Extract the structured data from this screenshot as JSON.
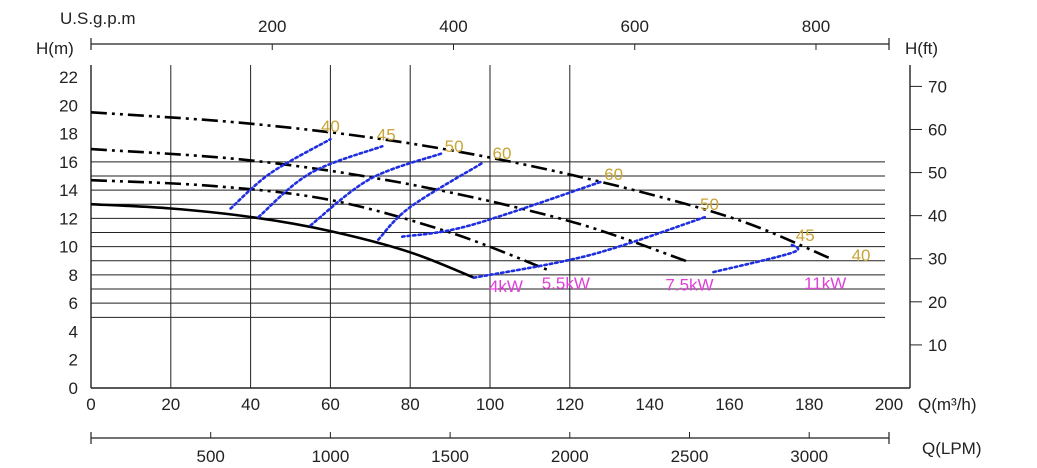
{
  "colors": {
    "axis": "#222222",
    "grid": "#222222",
    "pump_curve": "#000000",
    "efficiency": "#1f2ee0",
    "efficiency_label": "#c8a536",
    "power_label": "#e040d8"
  },
  "chart_data": {
    "type": "line",
    "xlabel": "Q(m³/h)",
    "ylabel": "H(m)",
    "xlim": [
      0,
      200
    ],
    "ylim": [
      0,
      22
    ],
    "x_ticks": [
      "0",
      "20",
      "40",
      "60",
      "80",
      "100",
      "120",
      "140",
      "160",
      "180",
      "200"
    ],
    "y_ticks": [
      "0",
      "2",
      "4",
      "6",
      "8",
      "10",
      "12",
      "14",
      "16",
      "18",
      "20",
      "22"
    ],
    "secondary_axes": {
      "top": {
        "label": "U.S.g.p.m",
        "ticks": [
          "200",
          "400",
          "600",
          "800"
        ]
      },
      "right": {
        "label": "H(ft)",
        "ticks": [
          "10",
          "20",
          "30",
          "40",
          "50",
          "60",
          "70"
        ]
      },
      "bottom": {
        "label": "Q(LPM)",
        "ticks": [
          "500",
          "1000",
          "1500",
          "2000",
          "2500",
          "3000"
        ]
      }
    },
    "grid": {
      "vertical_x": [
        20,
        40,
        60,
        80,
        100,
        120
      ],
      "horizontal_y": [
        5,
        6,
        7,
        8,
        9,
        10,
        11,
        12,
        13,
        14,
        15,
        16
      ]
    },
    "series": [
      {
        "name": "4kW",
        "style": "solid",
        "x": [
          0,
          20,
          40,
          60,
          80,
          96
        ],
        "y": [
          13,
          12.7,
          12.1,
          11.1,
          9.6,
          7.8
        ]
      },
      {
        "name": "5.5kW",
        "style": "dash-dot",
        "x": [
          0,
          30,
          60,
          90,
          115
        ],
        "y": [
          14.7,
          14.3,
          13.3,
          11,
          8.3
        ]
      },
      {
        "name": "7.5kW",
        "style": "dash-dot",
        "x": [
          0,
          40,
          80,
          120,
          150
        ],
        "y": [
          16.9,
          16.1,
          14.4,
          11.8,
          8.9
        ]
      },
      {
        "name": "11kW",
        "style": "dash-dot",
        "x": [
          0,
          40,
          80,
          120,
          160,
          185
        ],
        "y": [
          19.5,
          18.7,
          17.3,
          15.1,
          12.1,
          9.2
        ]
      }
    ],
    "efficiency_curves": [
      {
        "label": "40",
        "x": [
          35,
          45,
          60
        ],
        "y": [
          12.7,
          15.2,
          17.6
        ]
      },
      {
        "label": "45",
        "x": [
          42,
          55,
          73
        ],
        "y": [
          12.1,
          15.2,
          17.1
        ]
      },
      {
        "label": "50",
        "x": [
          55,
          70,
          88
        ],
        "y": [
          11.5,
          14.8,
          16.6
        ]
      },
      {
        "label": "60",
        "x": [
          72,
          80,
          98
        ],
        "y": [
          10.5,
          12.8,
          15.9
        ]
      },
      {
        "label": "60",
        "x": [
          78,
          95,
          128
        ],
        "y": [
          10.7,
          11.5,
          14.6
        ]
      },
      {
        "label": "50",
        "x": [
          96,
          125,
          154
        ],
        "y": [
          7.8,
          9.4,
          12.1
        ]
      },
      {
        "label": "45",
        "x": [
          156,
          176,
          175
        ],
        "y": [
          8.2,
          9.6,
          10.2
        ]
      }
    ],
    "efficiency_labels": [
      {
        "text": "40",
        "x": 60,
        "y": 18.1
      },
      {
        "text": "45",
        "x": 74,
        "y": 17.5
      },
      {
        "text": "50",
        "x": 91,
        "y": 16.7
      },
      {
        "text": "60",
        "x": 103,
        "y": 16.2
      },
      {
        "text": "60",
        "x": 131,
        "y": 14.7
      },
      {
        "text": "50",
        "x": 155,
        "y": 12.6
      },
      {
        "text": "45",
        "x": 179,
        "y": 10.4
      },
      {
        "text": "40",
        "x": 193,
        "y": 9.0
      }
    ],
    "power_labels": [
      {
        "text": "4kW",
        "x": 104,
        "y": 6.8
      },
      {
        "text": "5.5kW",
        "x": 119,
        "y": 7.0
      },
      {
        "text": "7.5kW",
        "x": 150,
        "y": 6.9
      },
      {
        "text": "11kW",
        "x": 184,
        "y": 7.0
      }
    ]
  }
}
